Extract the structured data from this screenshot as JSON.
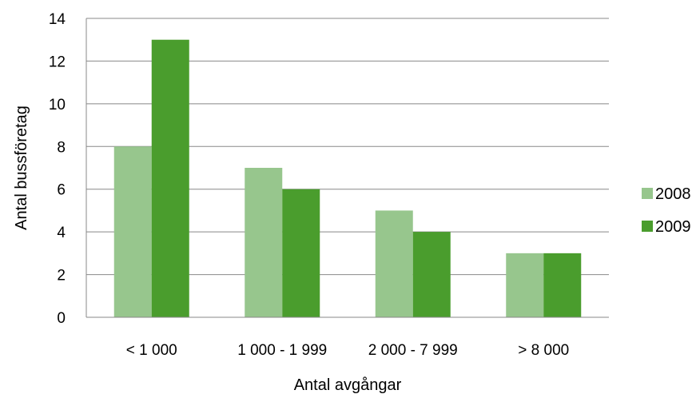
{
  "chart_data": {
    "type": "bar",
    "categories": [
      "< 1 000",
      "1 000 - 1 999",
      "2 000 - 7 999",
      "> 8 000"
    ],
    "series": [
      {
        "name": "2008",
        "values": [
          8,
          7,
          5,
          3
        ],
        "color": "#97C68D"
      },
      {
        "name": "2009",
        "values": [
          13,
          6,
          4,
          3
        ],
        "color": "#4A9D2D"
      }
    ],
    "xlabel": "Antal avgångar",
    "ylabel": "Antal bussföretag",
    "ylim": [
      0,
      14
    ],
    "yticks": [
      0,
      2,
      4,
      6,
      8,
      10,
      12,
      14
    ],
    "grid": true,
    "legend_position": "right"
  }
}
